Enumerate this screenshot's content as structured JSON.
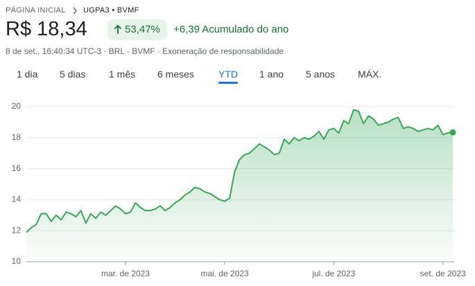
{
  "header": {
    "breadcrumb": "PÁGINA INICIAL",
    "ticker": "UGPA3 • BVMF",
    "price": "R$ 18,34",
    "change_percent": "53,47%",
    "change": "+6,39 Acumulado do ano",
    "meta": "8 de set., 16:40:34 UTC-3 · BRL · BVMF · Exoneração de responsabilidade"
  },
  "tabs": [
    "1 dia",
    "5 dias",
    "1 mês",
    "6 meses",
    "YTD",
    "1 ano",
    "5 anos",
    "MÁX."
  ],
  "selected_tab": "YTD",
  "chart_data": {
    "type": "line",
    "categories": [
      null,
      null,
      null,
      null,
      null,
      null,
      null,
      null,
      null,
      null,
      null,
      null,
      null,
      null,
      null,
      null,
      null,
      null,
      null,
      null,
      "mar. de 2023",
      null,
      null,
      null,
      null,
      null,
      null,
      null,
      null,
      null,
      null,
      null,
      null,
      null,
      null,
      null,
      null,
      null,
      null,
      null,
      "mai. de 2023",
      null,
      null,
      null,
      null,
      null,
      null,
      null,
      null,
      null,
      null,
      null,
      null,
      null,
      null,
      null,
      null,
      null,
      null,
      null,
      null,
      null,
      "jul. de 2023",
      null,
      null,
      null,
      null,
      null,
      null,
      null,
      null,
      null,
      null,
      null,
      null,
      null,
      null,
      null,
      null,
      null,
      null,
      null,
      null,
      null,
      "set. de 2023",
      null,
      null
    ],
    "series": [
      {
        "name": "UGPA3",
        "color": "#34a853",
        "values": [
          11.9,
          12.2,
          12.4,
          13.1,
          13.1,
          12.6,
          13.0,
          12.7,
          13.2,
          13.1,
          12.9,
          13.3,
          12.5,
          13.1,
          12.8,
          13.2,
          13.0,
          13.3,
          13.6,
          13.4,
          13.1,
          13.2,
          13.8,
          13.5,
          13.3,
          13.3,
          13.4,
          13.6,
          13.3,
          13.5,
          13.8,
          14.0,
          14.3,
          14.5,
          14.8,
          14.7,
          14.5,
          14.4,
          14.2,
          14.0,
          13.9,
          14.1,
          15.8,
          16.6,
          16.9,
          17.0,
          17.3,
          17.6,
          17.4,
          17.2,
          16.9,
          17.0,
          17.9,
          17.6,
          18.0,
          17.8,
          18.0,
          17.9,
          18.1,
          18.4,
          17.9,
          18.5,
          18.6,
          18.3,
          19.1,
          18.9,
          19.8,
          19.7,
          18.9,
          19.4,
          19.2,
          18.8,
          18.9,
          19.0,
          19.2,
          19.3,
          18.6,
          18.7,
          18.6,
          18.4,
          18.5,
          18.6,
          18.5,
          18.8,
          18.2,
          18.3,
          18.34
        ]
      }
    ],
    "ylim": [
      10,
      20
    ],
    "yticks": [
      10,
      12,
      14,
      16,
      18,
      20
    ],
    "grid": true
  }
}
